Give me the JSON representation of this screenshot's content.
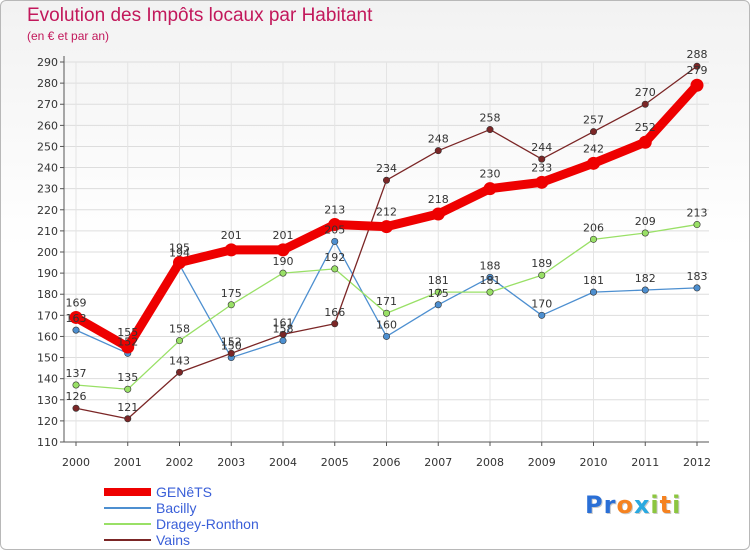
{
  "chart_data": {
    "type": "line",
    "title": "Evolution des Impôts locaux par Habitant",
    "subtitle": "(en € et par an)",
    "x": [
      "2000",
      "2001",
      "2002",
      "2003",
      "2004",
      "2005",
      "2006",
      "2007",
      "2008",
      "2009",
      "2010",
      "2011",
      "2012"
    ],
    "y_ticks": [
      110,
      120,
      130,
      140,
      150,
      160,
      170,
      180,
      190,
      200,
      210,
      220,
      230,
      240,
      250,
      260,
      270,
      280,
      290
    ],
    "ylim": [
      110,
      290
    ],
    "grid": true,
    "series": [
      {
        "name": "GENêTS",
        "color": "#ee0000",
        "emphasis": true,
        "values": [
          169,
          155,
          195,
          201,
          201,
          213,
          212,
          218,
          230,
          233,
          242,
          252,
          279
        ]
      },
      {
        "name": "Bacilly",
        "color": "#4d8fd0",
        "emphasis": false,
        "values": [
          163,
          152,
          194,
          150,
          158,
          205,
          160,
          175,
          188,
          170,
          181,
          182,
          183
        ]
      },
      {
        "name": "Dragey-Ronthon",
        "color": "#99e066",
        "emphasis": false,
        "values": [
          137,
          135,
          158,
          175,
          190,
          192,
          171,
          181,
          181,
          189,
          206,
          209,
          213
        ]
      },
      {
        "name": "Vains",
        "color": "#7b2626",
        "emphasis": false,
        "values": [
          126,
          121,
          143,
          152,
          161,
          166,
          234,
          248,
          258,
          244,
          257,
          270,
          288
        ]
      }
    ]
  },
  "logo": {
    "letters": [
      "P",
      "r",
      "o",
      "x",
      "i",
      "t",
      "i"
    ],
    "colors": [
      "#2a6fd6",
      "#2a6fd6",
      "#f58220",
      "#2aa9e0",
      "#8cc63f",
      "#f58220",
      "#8cc63f"
    ]
  }
}
